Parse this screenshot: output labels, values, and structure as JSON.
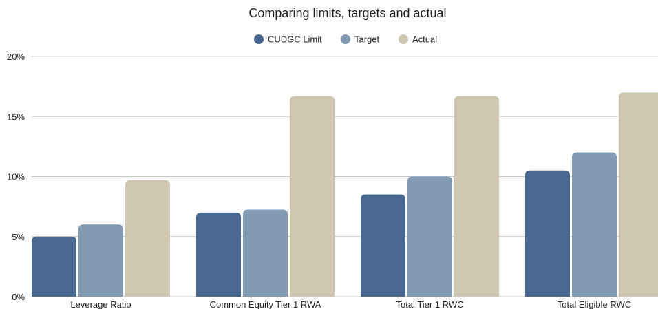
{
  "chart_data": {
    "type": "bar",
    "title": "Comparing limits, targets and actual",
    "categories": [
      "Leverage Ratio",
      "Common Equity Tier 1 RWA",
      "Total Tier 1 RWC",
      "Total Eligible RWC"
    ],
    "series": [
      {
        "name": "CUDGC Limit",
        "color": "#48688f",
        "values": [
          5.0,
          7.0,
          8.5,
          10.5
        ]
      },
      {
        "name": "Target",
        "color": "#829bb3",
        "values": [
          6.0,
          7.25,
          10.0,
          12.0
        ]
      },
      {
        "name": "Actual",
        "color": "#cec6b0",
        "values": [
          9.7,
          16.7,
          16.7,
          17.0
        ]
      }
    ],
    "ylim": [
      0,
      20
    ],
    "yticks": [
      "0%",
      "5%",
      "10%",
      "15%",
      "20%"
    ],
    "ytick_values": [
      0,
      5,
      10,
      15,
      20
    ],
    "grid": true,
    "legend_position": "top-center"
  }
}
